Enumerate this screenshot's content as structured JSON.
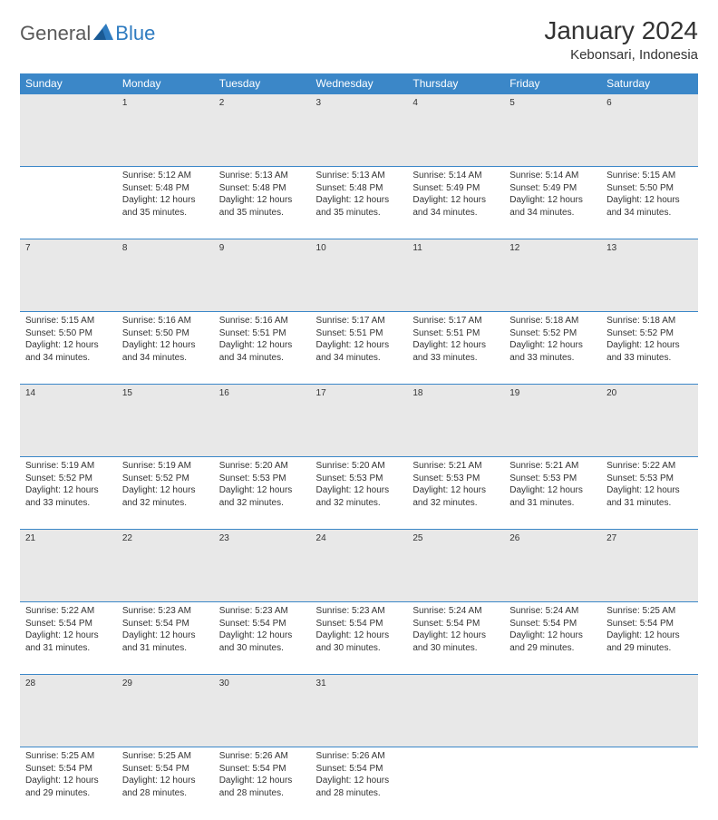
{
  "logo": {
    "general": "General",
    "blue": "Blue"
  },
  "title": "January 2024",
  "location": "Kebonsari, Indonesia",
  "colors": {
    "header_bg": "#3b87c8",
    "header_text": "#ffffff",
    "daynum_bg": "#e8e8e8",
    "border": "#3b87c8",
    "logo_blue": "#2e7bc0",
    "logo_gray": "#5a5a5a"
  },
  "day_headers": [
    "Sunday",
    "Monday",
    "Tuesday",
    "Wednesday",
    "Thursday",
    "Friday",
    "Saturday"
  ],
  "weeks": [
    {
      "nums": [
        "",
        "1",
        "2",
        "3",
        "4",
        "5",
        "6"
      ],
      "cells": [
        null,
        {
          "sunrise": "Sunrise: 5:12 AM",
          "sunset": "Sunset: 5:48 PM",
          "day1": "Daylight: 12 hours",
          "day2": "and 35 minutes."
        },
        {
          "sunrise": "Sunrise: 5:13 AM",
          "sunset": "Sunset: 5:48 PM",
          "day1": "Daylight: 12 hours",
          "day2": "and 35 minutes."
        },
        {
          "sunrise": "Sunrise: 5:13 AM",
          "sunset": "Sunset: 5:48 PM",
          "day1": "Daylight: 12 hours",
          "day2": "and 35 minutes."
        },
        {
          "sunrise": "Sunrise: 5:14 AM",
          "sunset": "Sunset: 5:49 PM",
          "day1": "Daylight: 12 hours",
          "day2": "and 34 minutes."
        },
        {
          "sunrise": "Sunrise: 5:14 AM",
          "sunset": "Sunset: 5:49 PM",
          "day1": "Daylight: 12 hours",
          "day2": "and 34 minutes."
        },
        {
          "sunrise": "Sunrise: 5:15 AM",
          "sunset": "Sunset: 5:50 PM",
          "day1": "Daylight: 12 hours",
          "day2": "and 34 minutes."
        }
      ]
    },
    {
      "nums": [
        "7",
        "8",
        "9",
        "10",
        "11",
        "12",
        "13"
      ],
      "cells": [
        {
          "sunrise": "Sunrise: 5:15 AM",
          "sunset": "Sunset: 5:50 PM",
          "day1": "Daylight: 12 hours",
          "day2": "and 34 minutes."
        },
        {
          "sunrise": "Sunrise: 5:16 AM",
          "sunset": "Sunset: 5:50 PM",
          "day1": "Daylight: 12 hours",
          "day2": "and 34 minutes."
        },
        {
          "sunrise": "Sunrise: 5:16 AM",
          "sunset": "Sunset: 5:51 PM",
          "day1": "Daylight: 12 hours",
          "day2": "and 34 minutes."
        },
        {
          "sunrise": "Sunrise: 5:17 AM",
          "sunset": "Sunset: 5:51 PM",
          "day1": "Daylight: 12 hours",
          "day2": "and 34 minutes."
        },
        {
          "sunrise": "Sunrise: 5:17 AM",
          "sunset": "Sunset: 5:51 PM",
          "day1": "Daylight: 12 hours",
          "day2": "and 33 minutes."
        },
        {
          "sunrise": "Sunrise: 5:18 AM",
          "sunset": "Sunset: 5:52 PM",
          "day1": "Daylight: 12 hours",
          "day2": "and 33 minutes."
        },
        {
          "sunrise": "Sunrise: 5:18 AM",
          "sunset": "Sunset: 5:52 PM",
          "day1": "Daylight: 12 hours",
          "day2": "and 33 minutes."
        }
      ]
    },
    {
      "nums": [
        "14",
        "15",
        "16",
        "17",
        "18",
        "19",
        "20"
      ],
      "cells": [
        {
          "sunrise": "Sunrise: 5:19 AM",
          "sunset": "Sunset: 5:52 PM",
          "day1": "Daylight: 12 hours",
          "day2": "and 33 minutes."
        },
        {
          "sunrise": "Sunrise: 5:19 AM",
          "sunset": "Sunset: 5:52 PM",
          "day1": "Daylight: 12 hours",
          "day2": "and 32 minutes."
        },
        {
          "sunrise": "Sunrise: 5:20 AM",
          "sunset": "Sunset: 5:53 PM",
          "day1": "Daylight: 12 hours",
          "day2": "and 32 minutes."
        },
        {
          "sunrise": "Sunrise: 5:20 AM",
          "sunset": "Sunset: 5:53 PM",
          "day1": "Daylight: 12 hours",
          "day2": "and 32 minutes."
        },
        {
          "sunrise": "Sunrise: 5:21 AM",
          "sunset": "Sunset: 5:53 PM",
          "day1": "Daylight: 12 hours",
          "day2": "and 32 minutes."
        },
        {
          "sunrise": "Sunrise: 5:21 AM",
          "sunset": "Sunset: 5:53 PM",
          "day1": "Daylight: 12 hours",
          "day2": "and 31 minutes."
        },
        {
          "sunrise": "Sunrise: 5:22 AM",
          "sunset": "Sunset: 5:53 PM",
          "day1": "Daylight: 12 hours",
          "day2": "and 31 minutes."
        }
      ]
    },
    {
      "nums": [
        "21",
        "22",
        "23",
        "24",
        "25",
        "26",
        "27"
      ],
      "cells": [
        {
          "sunrise": "Sunrise: 5:22 AM",
          "sunset": "Sunset: 5:54 PM",
          "day1": "Daylight: 12 hours",
          "day2": "and 31 minutes."
        },
        {
          "sunrise": "Sunrise: 5:23 AM",
          "sunset": "Sunset: 5:54 PM",
          "day1": "Daylight: 12 hours",
          "day2": "and 31 minutes."
        },
        {
          "sunrise": "Sunrise: 5:23 AM",
          "sunset": "Sunset: 5:54 PM",
          "day1": "Daylight: 12 hours",
          "day2": "and 30 minutes."
        },
        {
          "sunrise": "Sunrise: 5:23 AM",
          "sunset": "Sunset: 5:54 PM",
          "day1": "Daylight: 12 hours",
          "day2": "and 30 minutes."
        },
        {
          "sunrise": "Sunrise: 5:24 AM",
          "sunset": "Sunset: 5:54 PM",
          "day1": "Daylight: 12 hours",
          "day2": "and 30 minutes."
        },
        {
          "sunrise": "Sunrise: 5:24 AM",
          "sunset": "Sunset: 5:54 PM",
          "day1": "Daylight: 12 hours",
          "day2": "and 29 minutes."
        },
        {
          "sunrise": "Sunrise: 5:25 AM",
          "sunset": "Sunset: 5:54 PM",
          "day1": "Daylight: 12 hours",
          "day2": "and 29 minutes."
        }
      ]
    },
    {
      "nums": [
        "28",
        "29",
        "30",
        "31",
        "",
        "",
        ""
      ],
      "cells": [
        {
          "sunrise": "Sunrise: 5:25 AM",
          "sunset": "Sunset: 5:54 PM",
          "day1": "Daylight: 12 hours",
          "day2": "and 29 minutes."
        },
        {
          "sunrise": "Sunrise: 5:25 AM",
          "sunset": "Sunset: 5:54 PM",
          "day1": "Daylight: 12 hours",
          "day2": "and 28 minutes."
        },
        {
          "sunrise": "Sunrise: 5:26 AM",
          "sunset": "Sunset: 5:54 PM",
          "day1": "Daylight: 12 hours",
          "day2": "and 28 minutes."
        },
        {
          "sunrise": "Sunrise: 5:26 AM",
          "sunset": "Sunset: 5:54 PM",
          "day1": "Daylight: 12 hours",
          "day2": "and 28 minutes."
        },
        null,
        null,
        null
      ]
    }
  ]
}
